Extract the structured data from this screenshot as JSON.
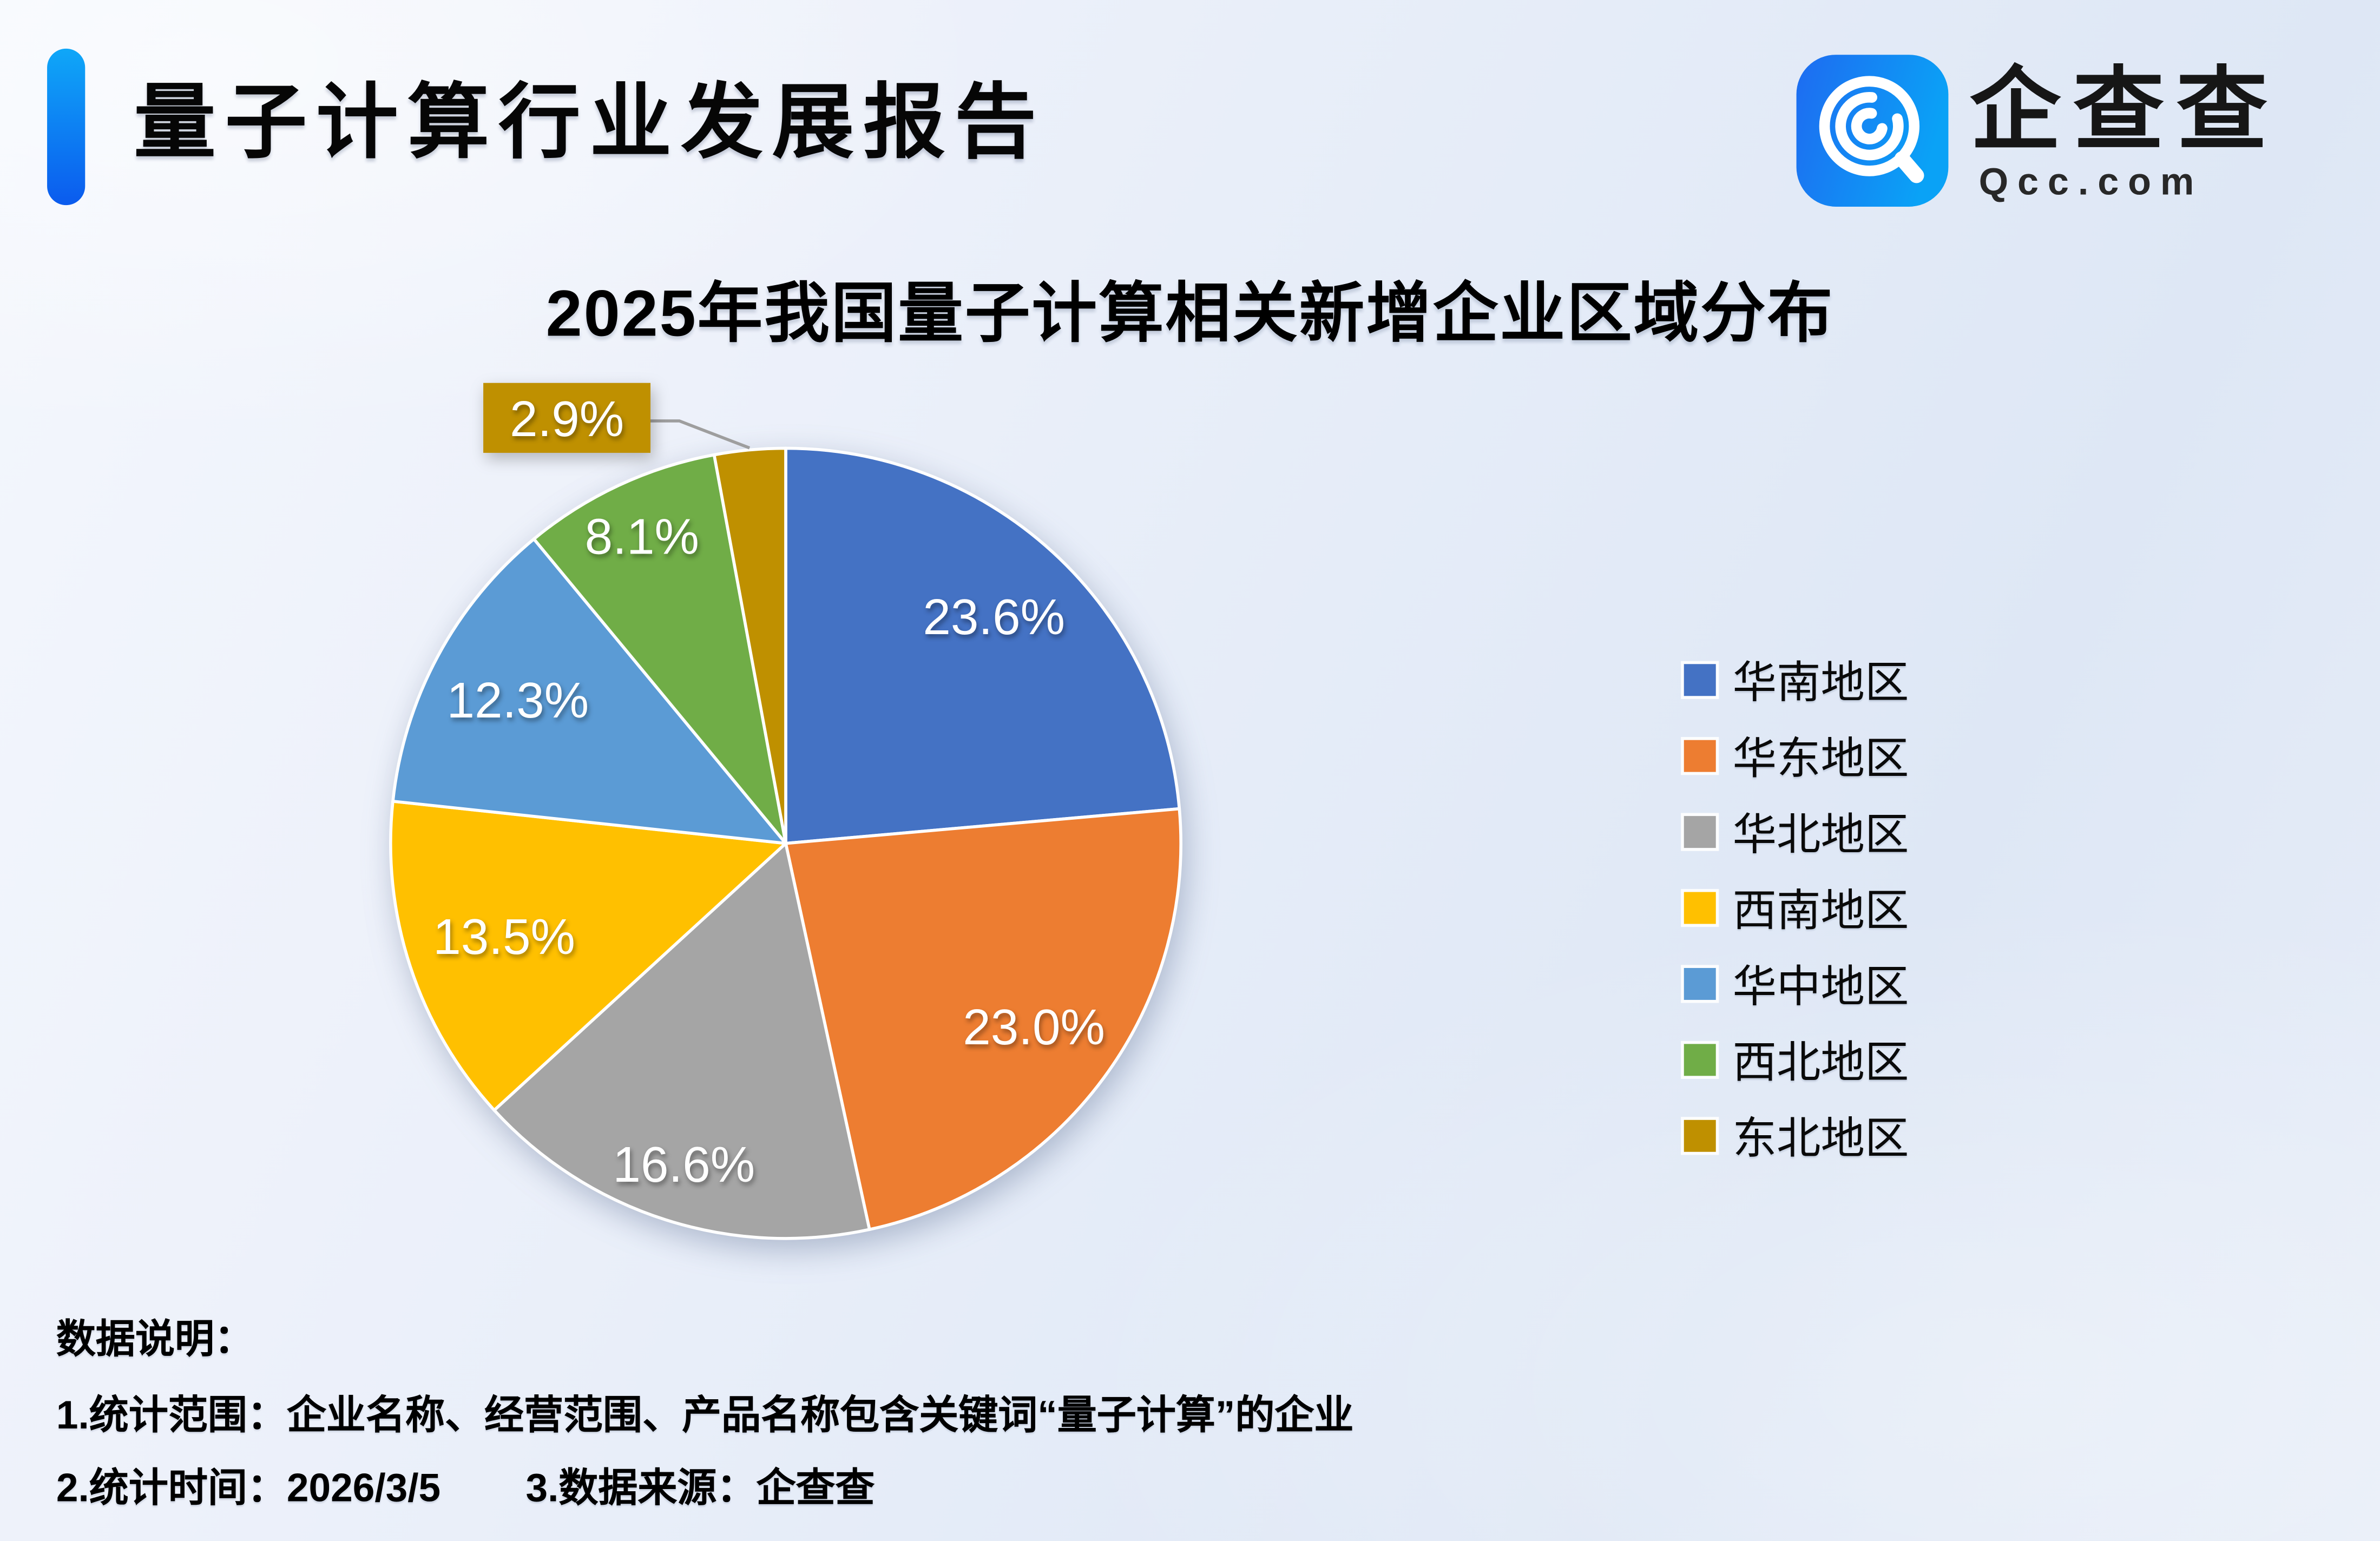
{
  "header": {
    "title": "量子计算行业发展报告",
    "accent_colors": [
      "#0FA7F8",
      "#0B5BEE"
    ]
  },
  "logo": {
    "icon_name": "qcc-logo-icon",
    "brand": "企查查",
    "domain": "Qcc.com",
    "icon_gradient": [
      "#1E6BF1",
      "#0AA2F6"
    ]
  },
  "chart_data": {
    "type": "pie",
    "title": "2025年我国量子计算相关新增企业区域分布",
    "unit": "percent",
    "start_angle_deg": 0,
    "direction": "clockwise",
    "legend_position": "right",
    "slice_border_color": "#ffffff",
    "slices": [
      {
        "label": "华南地区",
        "value": 23.6,
        "display": "23.6%",
        "color": "#4472C4"
      },
      {
        "label": "华东地区",
        "value": 23.0,
        "display": "23.0%",
        "color": "#ED7D31"
      },
      {
        "label": "华北地区",
        "value": 16.6,
        "display": "16.6%",
        "color": "#A5A5A5"
      },
      {
        "label": "西南地区",
        "value": 13.5,
        "display": "13.5%",
        "color": "#FFC000"
      },
      {
        "label": "华中地区",
        "value": 12.3,
        "display": "12.3%",
        "color": "#5B9BD5"
      },
      {
        "label": "西北地区",
        "value": 8.1,
        "display": "8.1%",
        "color": "#70AD47"
      },
      {
        "label": "东北地区",
        "value": 2.9,
        "display": "2.9%",
        "color": "#BF9000",
        "callout": true
      }
    ],
    "label_radius_frac": [
      0.78,
      0.78,
      0.85,
      0.75,
      0.77,
      0.86,
      1.0
    ],
    "leader_line_color": "#9e9e9e"
  },
  "notes": {
    "heading": "数据说明：",
    "line1": "1.统计范围：企业名称、经营范围、产品名称包含关键词“量子计算”的企业",
    "line2_part1": "2.统计时间：2026/3/5",
    "line2_part2": "3.数据来源：企查查"
  }
}
